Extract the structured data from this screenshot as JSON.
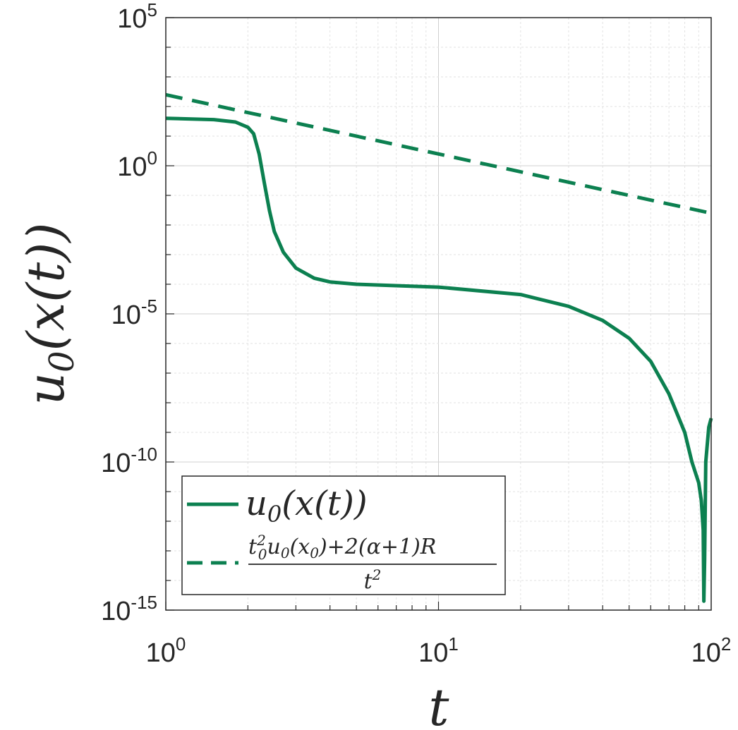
{
  "chart_data": {
    "type": "line",
    "title": "",
    "xlabel": "t",
    "ylabel": "u0(x(t))",
    "xscale": "log",
    "yscale": "log",
    "xlim": [
      1,
      100
    ],
    "ylim": [
      1e-15,
      100000.0
    ],
    "grid": true,
    "legend_position": "bottom-left",
    "x_ticks": [
      {
        "base": "10",
        "exp": "0"
      },
      {
        "base": "10",
        "exp": "1"
      },
      {
        "base": "10",
        "exp": "2"
      }
    ],
    "y_ticks": [
      {
        "base": "10",
        "exp": "5"
      },
      {
        "base": "10",
        "exp": "0"
      },
      {
        "base": "10",
        "exp": "-5"
      },
      {
        "base": "10",
        "exp": "-10"
      },
      {
        "base": "10",
        "exp": "-15"
      }
    ],
    "series": [
      {
        "name": "u0(x(t))",
        "style": "solid",
        "color": "#0c8050",
        "points": [
          [
            1.0,
            40
          ],
          [
            1.5,
            36
          ],
          [
            1.8,
            30
          ],
          [
            2.0,
            20
          ],
          [
            2.1,
            12
          ],
          [
            2.2,
            2.5
          ],
          [
            2.3,
            0.25
          ],
          [
            2.4,
            0.03
          ],
          [
            2.5,
            0.006
          ],
          [
            2.7,
            0.0012
          ],
          [
            3.0,
            0.00035
          ],
          [
            3.5,
            0.00016
          ],
          [
            4.0,
            0.00012
          ],
          [
            5.0,
            0.0001
          ],
          [
            10.0,
            8e-05
          ],
          [
            20.0,
            4.5e-05
          ],
          [
            30.0,
            1.8e-05
          ],
          [
            40.0,
            6e-06
          ],
          [
            50.0,
            1.5e-06
          ],
          [
            60.0,
            2.5e-07
          ],
          [
            70.0,
            2e-08
          ],
          [
            80.0,
            1e-09
          ],
          [
            85.0,
            1e-10
          ],
          [
            90.0,
            2e-11
          ],
          [
            92.0,
            5e-12
          ],
          [
            93.5,
            5e-13
          ],
          [
            94.0,
            2e-15
          ],
          [
            94.6,
            5e-14
          ],
          [
            95.5,
            1e-10
          ],
          [
            98.0,
            1.5e-09
          ],
          [
            100.0,
            3e-09
          ]
        ]
      },
      {
        "name": "(t0² u0(x0) + 2(α+1)R) / t²",
        "style": "dashed",
        "color": "#0c8050",
        "points": [
          [
            1.0,
            250
          ],
          [
            100.0,
            0.025
          ]
        ]
      }
    ],
    "legend": {
      "entries": [
        {
          "label": "u0(x(t))",
          "style": "solid"
        },
        {
          "label": "(t0² u0(x0) + 2(α+1)R) / t²",
          "style": "dashed"
        }
      ]
    }
  }
}
